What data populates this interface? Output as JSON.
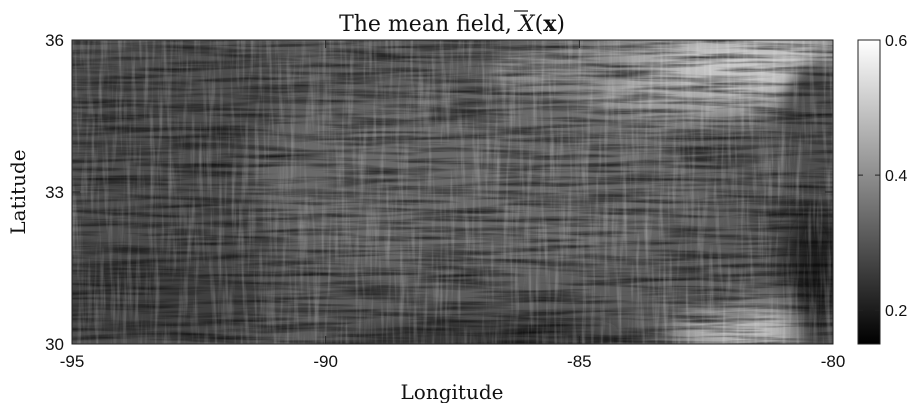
{
  "chart_data": {
    "type": "heatmap",
    "title": "The mean field, X̄(x)",
    "title_parts": {
      "prefix": "The mean field, ",
      "symbol": "X",
      "suffix": "(",
      "bold_arg": "x",
      "close": ")"
    },
    "xlabel": "Longitude",
    "ylabel": "Latitude",
    "xlim": [
      -95,
      -80
    ],
    "ylim": [
      30,
      36
    ],
    "x_ticks": [
      -95,
      -90,
      -85,
      -80
    ],
    "x_tick_labels": [
      "-95",
      "-90",
      "-85",
      "-80"
    ],
    "y_ticks": [
      30,
      33,
      36
    ],
    "y_tick_labels": [
      "30",
      "33",
      "36"
    ],
    "colorbar": {
      "colormap": "gray",
      "range": [
        0.15,
        0.6
      ],
      "ticks": [
        0.2,
        0.4,
        0.6
      ],
      "tick_labels": [
        "0.2",
        "0.4",
        "0.6"
      ]
    },
    "field_description_regions": [
      {
        "lon": [
          -84.5,
          -81
        ],
        "lat": [
          34.5,
          36
        ],
        "value": 0.5
      },
      {
        "lon": [
          -83.5,
          -80.5
        ],
        "lat": [
          30,
          30.8
        ],
        "value": 0.5
      },
      {
        "lon": [
          -81.5,
          -80
        ],
        "lat": [
          30,
          32.8
        ],
        "value": 0.17
      },
      {
        "lon": [
          -89,
          -84
        ],
        "lat": [
          30,
          30.3
        ],
        "value": 0.17
      }
    ]
  }
}
